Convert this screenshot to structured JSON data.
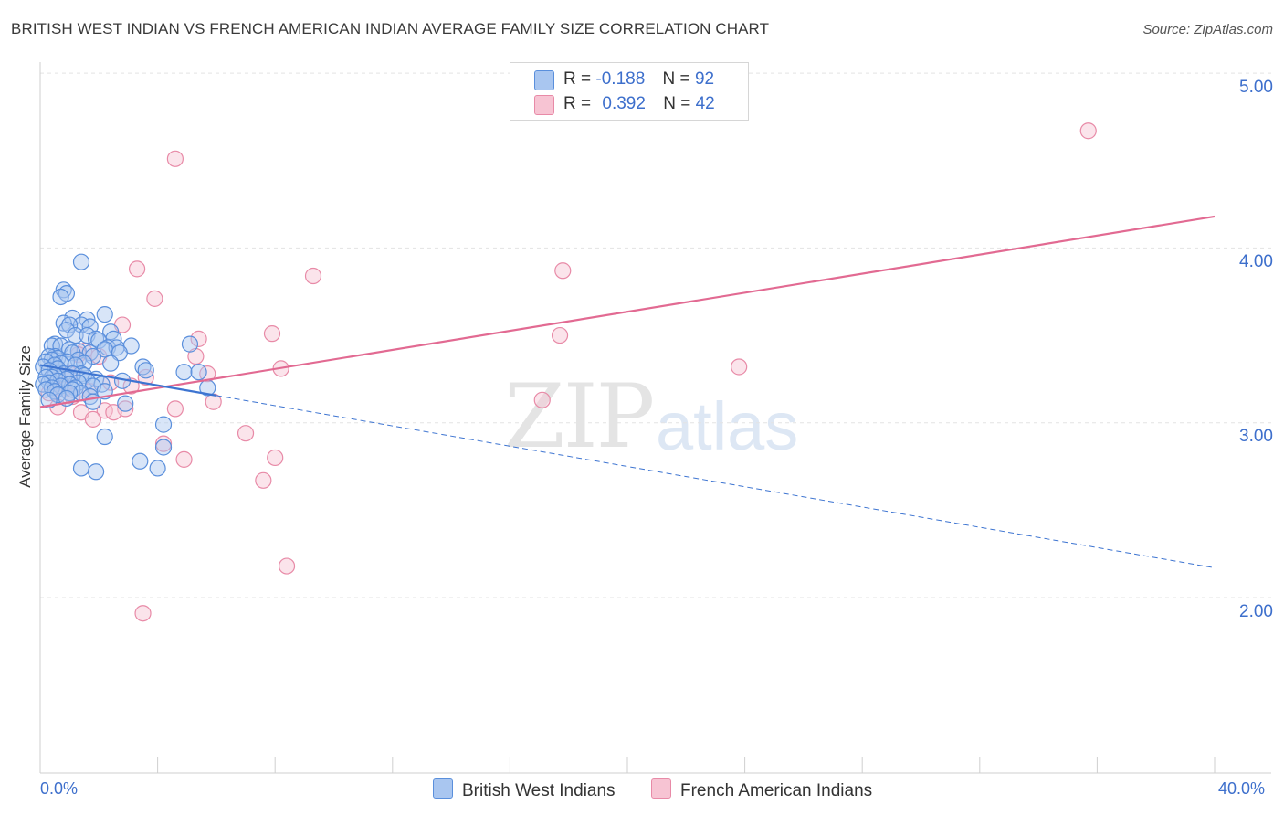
{
  "title": "BRITISH WEST INDIAN VS FRENCH AMERICAN INDIAN AVERAGE FAMILY SIZE CORRELATION CHART",
  "source": "Source: ZipAtlas.com",
  "watermark": {
    "zip": "ZIP",
    "atlas": "atlas"
  },
  "legend": {
    "series1": {
      "r_label": "R =",
      "r_value": "-0.188",
      "n_label": "N =",
      "n_value": "92"
    },
    "series2": {
      "r_label": "R =",
      "r_value": "0.392",
      "n_label": "N =",
      "n_value": "42"
    }
  },
  "colors": {
    "blue_fill": "#a9c6f0",
    "blue_stroke": "#5a8fdc",
    "blue_line": "#3d74d1",
    "pink_fill": "#f7c4d3",
    "pink_stroke": "#e88aa7",
    "pink_line": "#e26a92",
    "axis_text": "#3d6fcc",
    "grid": "#e3e3e3"
  },
  "chart_data": {
    "type": "scatter",
    "title": "BRITISH WEST INDIAN VS FRENCH AMERICAN INDIAN AVERAGE FAMILY SIZE CORRELATION CHART",
    "xlabel": "",
    "ylabel": "Average Family Size",
    "xlim": [
      0,
      40
    ],
    "ylim": [
      1.0,
      5.1
    ],
    "x_tick_labels": [
      "0.0%",
      "40.0%"
    ],
    "y_ticks": [
      2.0,
      3.0,
      4.0,
      5.0
    ],
    "y_tick_labels": [
      "2.00",
      "3.00",
      "4.00",
      "5.00"
    ],
    "grid": true,
    "series": [
      {
        "name": "British West Indians",
        "r": -0.188,
        "n": 92,
        "trend": {
          "x0": 0.0,
          "y0": 3.33,
          "x1": 40.0,
          "y1": 2.17,
          "solid_until_x": 6.0
        },
        "points": [
          [
            1.4,
            3.92
          ],
          [
            0.8,
            3.76
          ],
          [
            0.9,
            3.74
          ],
          [
            0.7,
            3.72
          ],
          [
            2.2,
            3.62
          ],
          [
            1.1,
            3.6
          ],
          [
            1.6,
            3.59
          ],
          [
            0.8,
            3.57
          ],
          [
            1.4,
            3.56
          ],
          [
            1.0,
            3.56
          ],
          [
            1.7,
            3.55
          ],
          [
            0.9,
            3.53
          ],
          [
            2.4,
            3.52
          ],
          [
            1.2,
            3.5
          ],
          [
            1.6,
            3.5
          ],
          [
            1.9,
            3.48
          ],
          [
            2.5,
            3.48
          ],
          [
            2.0,
            3.47
          ],
          [
            0.5,
            3.45
          ],
          [
            5.1,
            3.45
          ],
          [
            0.4,
            3.44
          ],
          [
            0.7,
            3.44
          ],
          [
            3.1,
            3.44
          ],
          [
            2.3,
            3.43
          ],
          [
            2.6,
            3.43
          ],
          [
            2.2,
            3.42
          ],
          [
            1.0,
            3.42
          ],
          [
            1.3,
            3.41
          ],
          [
            1.1,
            3.4
          ],
          [
            1.7,
            3.4
          ],
          [
            2.7,
            3.4
          ],
          [
            0.5,
            3.38
          ],
          [
            0.3,
            3.38
          ],
          [
            1.8,
            3.38
          ],
          [
            0.6,
            3.37
          ],
          [
            1.3,
            3.36
          ],
          [
            0.4,
            3.36
          ],
          [
            0.9,
            3.35
          ],
          [
            0.2,
            3.35
          ],
          [
            2.4,
            3.34
          ],
          [
            1.5,
            3.34
          ],
          [
            0.7,
            3.34
          ],
          [
            1.2,
            3.33
          ],
          [
            0.5,
            3.33
          ],
          [
            0.1,
            3.32
          ],
          [
            3.5,
            3.32
          ],
          [
            0.6,
            3.31
          ],
          [
            3.6,
            3.3
          ],
          [
            0.3,
            3.3
          ],
          [
            4.9,
            3.29
          ],
          [
            5.4,
            3.29
          ],
          [
            1.4,
            3.28
          ],
          [
            0.8,
            3.28
          ],
          [
            1.1,
            3.28
          ],
          [
            0.5,
            3.27
          ],
          [
            1.5,
            3.27
          ],
          [
            0.4,
            3.26
          ],
          [
            0.2,
            3.26
          ],
          [
            1.9,
            3.25
          ],
          [
            0.9,
            3.25
          ],
          [
            0.6,
            3.24
          ],
          [
            1.6,
            3.24
          ],
          [
            2.8,
            3.24
          ],
          [
            0.3,
            3.23
          ],
          [
            1.3,
            3.23
          ],
          [
            1.0,
            3.22
          ],
          [
            2.1,
            3.22
          ],
          [
            0.1,
            3.22
          ],
          [
            0.7,
            3.21
          ],
          [
            1.8,
            3.21
          ],
          [
            0.4,
            3.2
          ],
          [
            1.2,
            3.2
          ],
          [
            5.7,
            3.2
          ],
          [
            0.2,
            3.19
          ],
          [
            1.1,
            3.19
          ],
          [
            2.2,
            3.18
          ],
          [
            0.5,
            3.18
          ],
          [
            1.4,
            3.17
          ],
          [
            1.0,
            3.17
          ],
          [
            0.6,
            3.16
          ],
          [
            1.7,
            3.15
          ],
          [
            0.9,
            3.14
          ],
          [
            0.3,
            3.13
          ],
          [
            1.8,
            3.12
          ],
          [
            2.9,
            3.11
          ],
          [
            4.2,
            2.99
          ],
          [
            2.2,
            2.92
          ],
          [
            4.2,
            2.86
          ],
          [
            3.4,
            2.78
          ],
          [
            1.4,
            2.74
          ],
          [
            4.0,
            2.74
          ],
          [
            1.9,
            2.72
          ]
        ]
      },
      {
        "name": "French American Indians",
        "r": 0.392,
        "n": 42,
        "trend": {
          "x0": 0.0,
          "y0": 3.09,
          "x1": 40.0,
          "y1": 4.18
        },
        "points": [
          [
            35.7,
            4.67
          ],
          [
            4.6,
            4.51
          ],
          [
            3.3,
            3.88
          ],
          [
            9.3,
            3.84
          ],
          [
            17.8,
            3.87
          ],
          [
            3.9,
            3.71
          ],
          [
            2.8,
            3.56
          ],
          [
            7.9,
            3.51
          ],
          [
            17.7,
            3.5
          ],
          [
            5.4,
            3.48
          ],
          [
            1.5,
            3.41
          ],
          [
            1.3,
            3.39
          ],
          [
            2.0,
            3.38
          ],
          [
            5.3,
            3.38
          ],
          [
            8.2,
            3.31
          ],
          [
            23.8,
            3.32
          ],
          [
            5.7,
            3.28
          ],
          [
            3.6,
            3.26
          ],
          [
            2.4,
            3.23
          ],
          [
            3.1,
            3.21
          ],
          [
            0.8,
            3.19
          ],
          [
            0.5,
            3.18
          ],
          [
            1.7,
            3.18
          ],
          [
            0.3,
            3.17
          ],
          [
            1.1,
            3.15
          ],
          [
            17.1,
            3.13
          ],
          [
            5.9,
            3.12
          ],
          [
            0.6,
            3.09
          ],
          [
            4.6,
            3.08
          ],
          [
            2.9,
            3.08
          ],
          [
            2.2,
            3.07
          ],
          [
            1.4,
            3.06
          ],
          [
            2.5,
            3.06
          ],
          [
            1.8,
            3.02
          ],
          [
            7.0,
            2.94
          ],
          [
            4.2,
            2.88
          ],
          [
            8.0,
            2.8
          ],
          [
            4.9,
            2.79
          ],
          [
            7.6,
            2.67
          ],
          [
            8.4,
            2.18
          ],
          [
            3.5,
            1.91
          ],
          [
            1.0,
            3.28
          ]
        ]
      }
    ]
  },
  "legend_bottom": [
    "British West Indians",
    "French American Indians"
  ]
}
